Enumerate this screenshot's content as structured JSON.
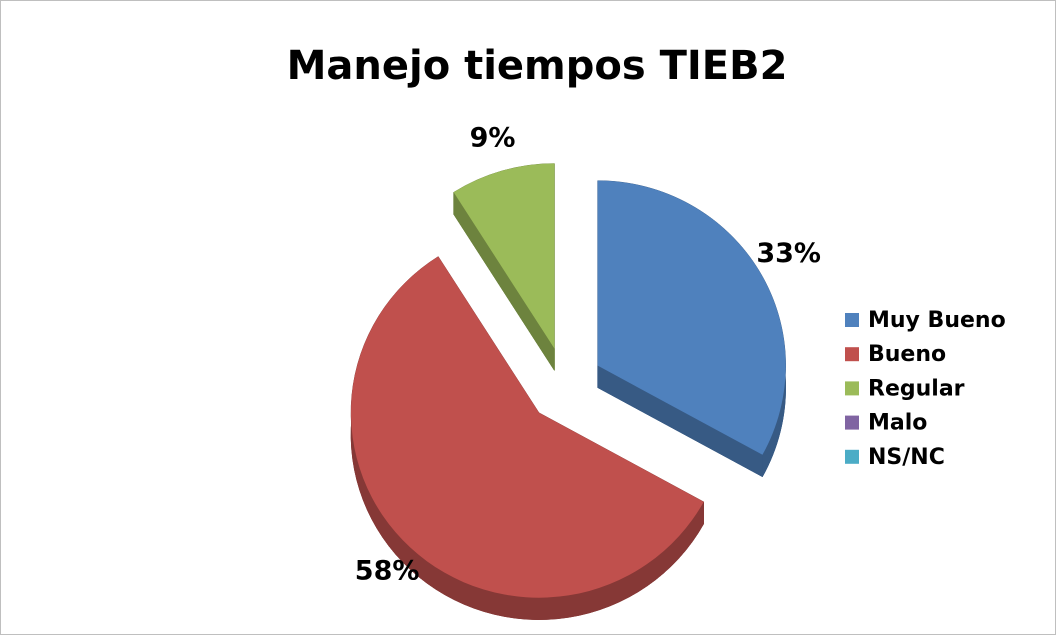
{
  "chart_data": {
    "type": "pie",
    "title": "Manejo tiempos TIEB2",
    "categories": [
      "Muy Bueno",
      "Bueno",
      "Regular",
      "Malo",
      "NS/NC"
    ],
    "values": [
      33,
      58,
      9,
      0,
      0
    ],
    "value_labels": [
      "33%",
      "58%",
      "9%",
      null,
      null
    ],
    "colors": [
      "#4f81bd",
      "#c0504d",
      "#9bbb59",
      "#8064a2",
      "#4bacc6"
    ],
    "legend": "right"
  }
}
